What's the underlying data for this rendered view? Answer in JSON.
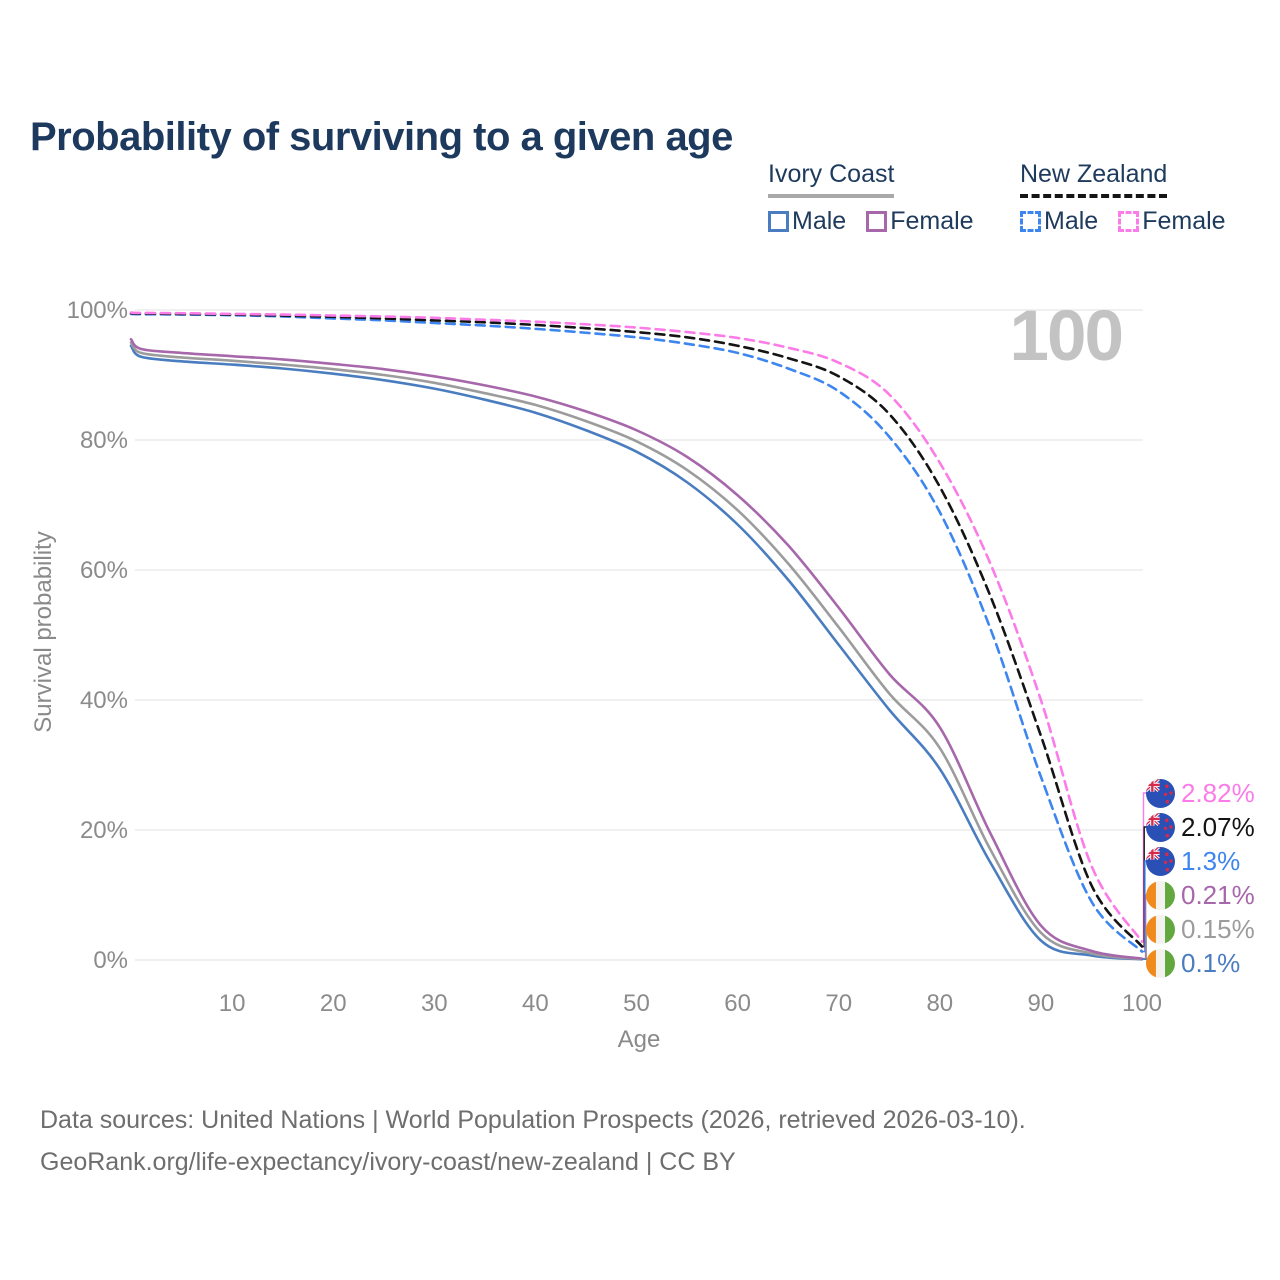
{
  "title": "Probability of surviving to a given age",
  "watermark": "100",
  "legend": {
    "groups": [
      {
        "name": "Ivory Coast",
        "line_style": "solid",
        "underline_color": "#a9a9a9",
        "items": [
          {
            "label": "Male",
            "color": "#4a7dc0"
          },
          {
            "label": "Female",
            "color": "#a767ab"
          }
        ]
      },
      {
        "name": "New Zealand",
        "line_style": "dashed",
        "underline_color": "#151515",
        "items": [
          {
            "label": "Male",
            "color": "#3d86f0"
          },
          {
            "label": "Female",
            "color": "#fb7ce8"
          }
        ]
      }
    ]
  },
  "chart_data": {
    "type": "line",
    "title": "Probability of surviving to a given age",
    "xlabel": "Age",
    "ylabel": "Survival probability",
    "xlim": [
      0,
      100
    ],
    "ylim": [
      0,
      100
    ],
    "grid": "horizontal",
    "legend_position": "top-right",
    "xticks": [
      10,
      20,
      30,
      40,
      50,
      60,
      70,
      80,
      90,
      100
    ],
    "yticks": [
      0,
      20,
      40,
      60,
      80,
      100
    ],
    "ytick_suffix": "%",
    "x": [
      0,
      1,
      5,
      10,
      15,
      20,
      25,
      30,
      35,
      40,
      45,
      50,
      55,
      60,
      65,
      70,
      75,
      80,
      85,
      90,
      95,
      100
    ],
    "series": [
      {
        "name": "Ivory Coast Male",
        "country": "Ivory Coast",
        "sex": "male",
        "color": "#4a7dc0",
        "dash": "solid",
        "values": [
          94.5,
          92.8,
          92.1,
          91.6,
          91.0,
          90.2,
          89.2,
          87.9,
          86.2,
          84.2,
          81.5,
          78.2,
          73.5,
          67.0,
          58.5,
          48.5,
          38.5,
          29.4,
          15.0,
          3.0,
          0.7,
          0.1
        ],
        "end_label": "0.1%"
      },
      {
        "name": "Ivory Coast Both sexes",
        "country": "Ivory Coast",
        "sex": "both",
        "color": "#9c9c9c",
        "dash": "solid",
        "values": [
          95.0,
          93.4,
          92.7,
          92.2,
          91.6,
          90.9,
          90.0,
          88.8,
          87.2,
          85.4,
          82.9,
          79.8,
          75.4,
          69.2,
          61.0,
          51.2,
          41.0,
          32.6,
          17.0,
          4.2,
          1.0,
          0.15
        ],
        "end_label": "0.15%"
      },
      {
        "name": "Ivory Coast Female",
        "country": "Ivory Coast",
        "sex": "female",
        "color": "#a767ab",
        "dash": "solid",
        "values": [
          95.5,
          94.0,
          93.4,
          92.9,
          92.4,
          91.7,
          90.9,
          89.8,
          88.4,
          86.7,
          84.4,
          81.5,
          77.4,
          71.5,
          63.8,
          54.2,
          44.0,
          35.8,
          19.5,
          5.3,
          1.4,
          0.21
        ],
        "end_label": "0.21%"
      },
      {
        "name": "New Zealand Male",
        "country": "New Zealand",
        "sex": "male",
        "color": "#3d86f0",
        "dash": "dashed",
        "values": [
          99.4,
          99.35,
          99.3,
          99.2,
          99.0,
          98.7,
          98.4,
          98.0,
          97.6,
          97.1,
          96.5,
          95.8,
          94.8,
          93.4,
          91.0,
          87.5,
          80.5,
          68.9,
          51.0,
          28.2,
          9.0,
          1.3
        ],
        "end_label": "1.3%"
      },
      {
        "name": "New Zealand Both sexes",
        "country": "New Zealand",
        "sex": "both",
        "color": "#141414",
        "dash": "dashed",
        "values": [
          99.5,
          99.45,
          99.4,
          99.3,
          99.15,
          98.95,
          98.7,
          98.4,
          98.1,
          97.7,
          97.2,
          96.6,
          95.8,
          94.5,
          92.6,
          89.8,
          84.0,
          72.8,
          56.0,
          34.5,
          11.5,
          2.07
        ],
        "end_label": "2.07%"
      },
      {
        "name": "New Zealand Female",
        "country": "New Zealand",
        "sex": "female",
        "color": "#fb7ce8",
        "dash": "dashed",
        "values": [
          99.6,
          99.55,
          99.5,
          99.4,
          99.3,
          99.15,
          99.0,
          98.8,
          98.5,
          98.2,
          97.8,
          97.3,
          96.6,
          95.7,
          94.2,
          91.9,
          87.0,
          76.5,
          61.0,
          40.0,
          14.5,
          2.82
        ],
        "end_label": "2.82%"
      }
    ],
    "age_counter": "100"
  },
  "end_labels": [
    {
      "text": "2.82%",
      "value": 2.82,
      "color": "#fb7ce8",
      "flag": "nz"
    },
    {
      "text": "2.07%",
      "value": 2.07,
      "color": "#141414",
      "flag": "nz"
    },
    {
      "text": "1.3%",
      "value": 1.3,
      "color": "#3d86f0",
      "flag": "nz"
    },
    {
      "text": "0.21%",
      "value": 0.21,
      "color": "#a767ab",
      "flag": "ci"
    },
    {
      "text": "0.15%",
      "value": 0.15,
      "color": "#9c9c9c",
      "flag": "ci"
    },
    {
      "text": "0.1%",
      "value": 0.1,
      "color": "#4a7dc0",
      "flag": "ci"
    }
  ],
  "footer": {
    "line1": "Data sources: United Nations | World Population Prospects (2026, retrieved 2026-03-10).",
    "line2": "GeoRank.org/life-expectancy/ivory-coast/new-zealand | CC BY"
  }
}
